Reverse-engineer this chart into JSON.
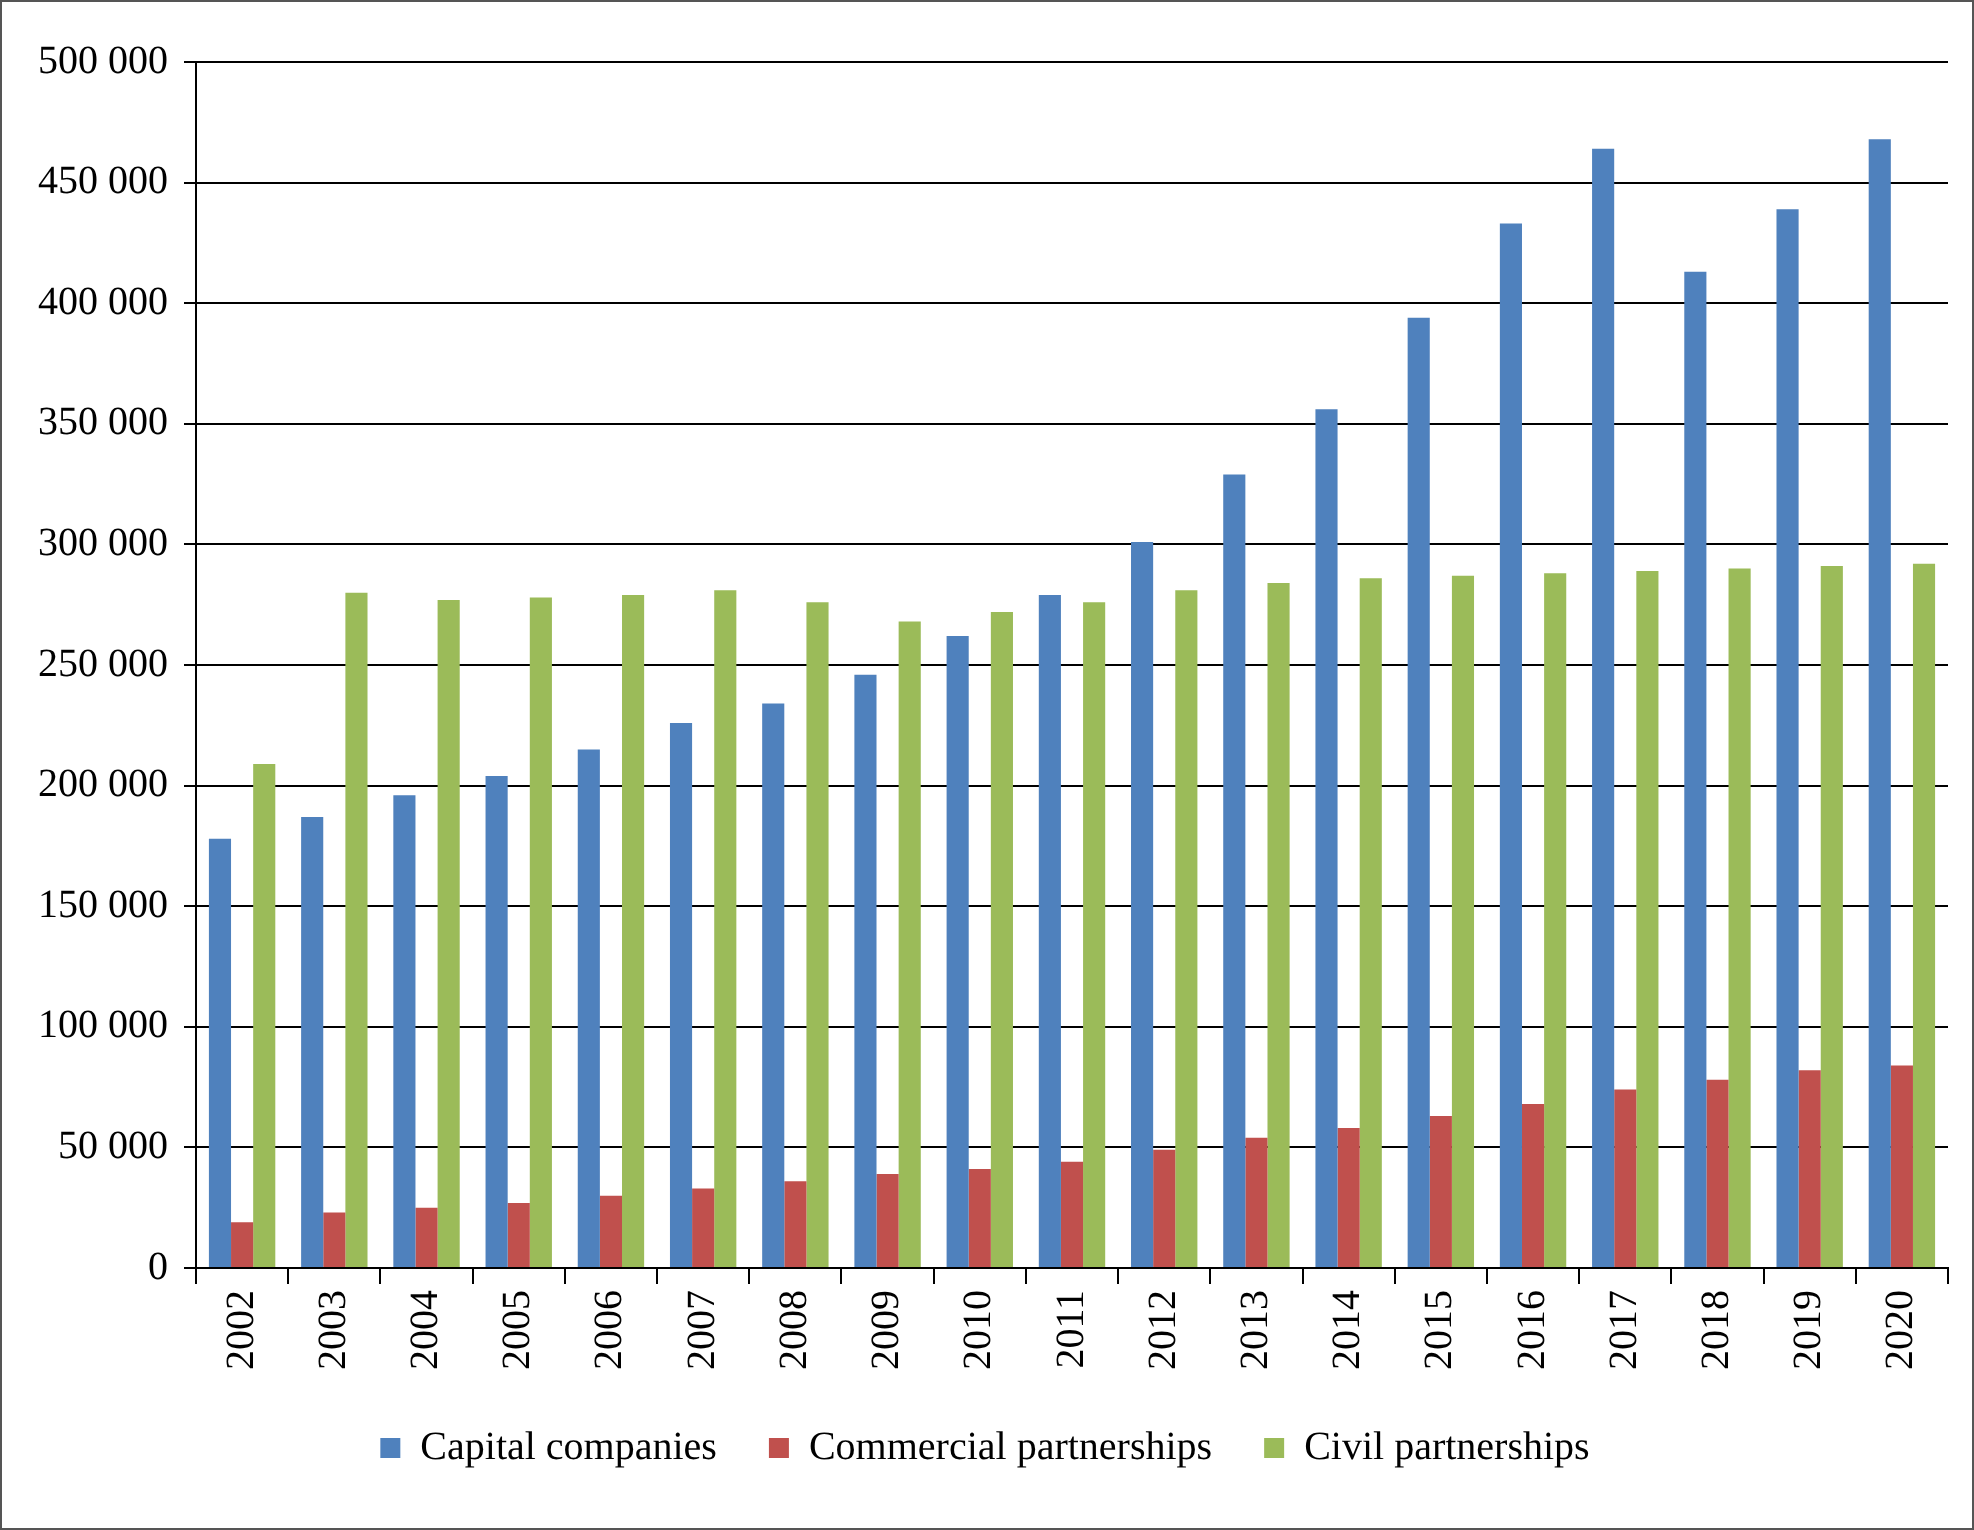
{
  "chart_data": {
    "type": "bar",
    "categories": [
      "2002",
      "2003",
      "2004",
      "2005",
      "2006",
      "2007",
      "2008",
      "2009",
      "2010",
      "2011",
      "2012",
      "2013",
      "2014",
      "2015",
      "2016",
      "2017",
      "2018",
      "2019",
      "2020"
    ],
    "series": [
      {
        "name": "Capital companies",
        "color": "#4f81bd",
        "values": [
          178000,
          187000,
          196000,
          204000,
          215000,
          226000,
          234000,
          246000,
          262000,
          279000,
          301000,
          329000,
          356000,
          394000,
          433000,
          464000,
          413000,
          439000,
          468000
        ]
      },
      {
        "name": "Commercial partnerships",
        "color": "#c0504d",
        "values": [
          19000,
          23000,
          25000,
          27000,
          30000,
          33000,
          36000,
          39000,
          41000,
          44000,
          49000,
          54000,
          58000,
          63000,
          68000,
          74000,
          78000,
          82000,
          84000
        ]
      },
      {
        "name": "Civil partnerships",
        "color": "#9bbb59",
        "values": [
          209000,
          280000,
          277000,
          278000,
          279000,
          281000,
          276000,
          268000,
          272000,
          276000,
          281000,
          284000,
          286000,
          287000,
          288000,
          289000,
          290000,
          291000,
          292000
        ]
      }
    ],
    "ylim": [
      0,
      500000
    ],
    "yticks": [
      {
        "value": 0,
        "label": "0"
      },
      {
        "value": 50000,
        "label": "50 000"
      },
      {
        "value": 100000,
        "label": "100 000"
      },
      {
        "value": 150000,
        "label": "150 000"
      },
      {
        "value": 200000,
        "label": "200 000"
      },
      {
        "value": 250000,
        "label": "250 000"
      },
      {
        "value": 300000,
        "label": "300 000"
      },
      {
        "value": 350000,
        "label": "350 000"
      },
      {
        "value": 400000,
        "label": "400 000"
      },
      {
        "value": 450000,
        "label": "450 000"
      },
      {
        "value": 500000,
        "label": "500 000"
      }
    ],
    "grid": "y",
    "legend": "bottom"
  }
}
